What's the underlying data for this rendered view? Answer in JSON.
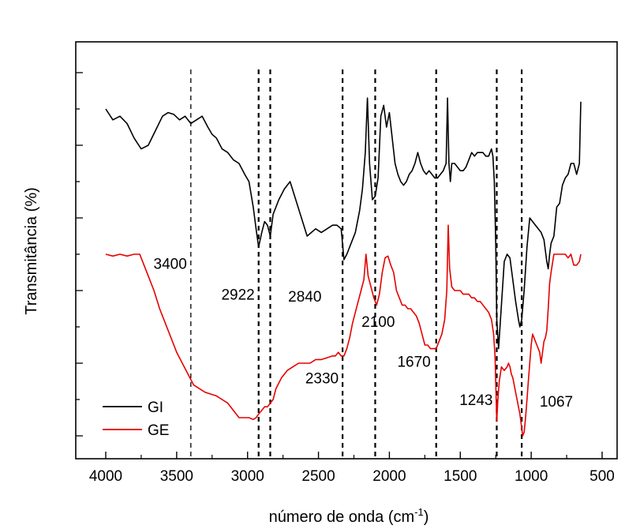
{
  "chart_data": {
    "type": "line",
    "xlabel_main": "número de onda (cm",
    "xlabel_sup": "-1",
    "xlabel_end": ")",
    "ylabel": "Transmitância (%)",
    "xlim": [
      4200,
      400
    ],
    "x_reversed": true,
    "ylim": [
      0,
      10
    ],
    "x_ticks": [
      4000,
      3500,
      3000,
      2500,
      2000,
      1500,
      1000,
      500
    ],
    "y_ticks_labeled": false,
    "legend": {
      "position": "bottom-left",
      "entries": [
        {
          "name": "GI",
          "color": "#000000"
        },
        {
          "name": "GE",
          "color": "#e60000"
        }
      ]
    },
    "reference_lines": [
      {
        "x": 3400,
        "label": "3400",
        "label_y": 4.6
      },
      {
        "x": 2922,
        "label": "2922",
        "label_y": 3.75
      },
      {
        "x": 2840,
        "label": "2840",
        "label_y": 3.7
      },
      {
        "x": 2330,
        "label": "2330",
        "label_y": 1.45
      },
      {
        "x": 2100,
        "label": "2100",
        "label_y": 3.0
      },
      {
        "x": 1670,
        "label": "1670",
        "label_y": 1.9
      },
      {
        "x": 1243,
        "label": "1243",
        "label_y": 0.85
      },
      {
        "x": 1067,
        "label": "1067",
        "label_y": 0.8
      }
    ],
    "series": [
      {
        "name": "GI",
        "color": "#000000",
        "x": [
          4000,
          3950,
          3900,
          3850,
          3800,
          3750,
          3700,
          3650,
          3600,
          3560,
          3520,
          3480,
          3440,
          3400,
          3360,
          3320,
          3280,
          3250,
          3220,
          3180,
          3140,
          3100,
          3060,
          3020,
          2990,
          2960,
          2940,
          2922,
          2900,
          2880,
          2860,
          2840,
          2820,
          2780,
          2740,
          2700,
          2660,
          2620,
          2580,
          2550,
          2520,
          2480,
          2440,
          2400,
          2370,
          2340,
          2320,
          2300,
          2270,
          2240,
          2210,
          2190,
          2170,
          2155,
          2140,
          2120,
          2100,
          2080,
          2060,
          2040,
          2020,
          2000,
          1980,
          1960,
          1940,
          1920,
          1900,
          1880,
          1860,
          1840,
          1820,
          1800,
          1780,
          1760,
          1740,
          1720,
          1700,
          1680,
          1660,
          1640,
          1620,
          1600,
          1590,
          1580,
          1570,
          1560,
          1540,
          1520,
          1500,
          1480,
          1460,
          1440,
          1420,
          1400,
          1380,
          1360,
          1340,
          1320,
          1300,
          1280,
          1270,
          1260,
          1250,
          1243,
          1230,
          1210,
          1190,
          1170,
          1150,
          1130,
          1110,
          1090,
          1080,
          1067,
          1050,
          1030,
          1010,
          990,
          970,
          950,
          930,
          910,
          890,
          880,
          870,
          860,
          840,
          820,
          800,
          780,
          760,
          740,
          720,
          700,
          680,
          660,
          650
        ],
        "y": [
          9.0,
          8.7,
          8.8,
          8.6,
          8.2,
          7.9,
          8.0,
          8.4,
          8.8,
          8.9,
          8.85,
          8.7,
          8.8,
          8.6,
          8.7,
          8.8,
          8.5,
          8.3,
          8.2,
          7.9,
          7.8,
          7.6,
          7.5,
          7.2,
          7.0,
          6.3,
          5.7,
          5.2,
          5.6,
          5.9,
          5.8,
          5.5,
          6.1,
          6.5,
          6.8,
          7.0,
          6.5,
          6.0,
          5.5,
          5.6,
          5.7,
          5.6,
          5.7,
          5.8,
          5.8,
          5.7,
          4.85,
          5.0,
          5.3,
          5.6,
          6.2,
          6.8,
          7.8,
          9.3,
          7.5,
          6.5,
          6.6,
          7.1,
          8.8,
          9.1,
          8.5,
          8.9,
          8.2,
          7.5,
          7.2,
          7.0,
          6.9,
          7.0,
          7.2,
          7.3,
          7.5,
          7.8,
          7.5,
          7.3,
          7.2,
          7.3,
          7.2,
          7.1,
          7.1,
          7.2,
          7.3,
          7.5,
          9.3,
          7.5,
          7.0,
          7.5,
          7.5,
          7.4,
          7.3,
          7.3,
          7.4,
          7.6,
          7.8,
          7.7,
          7.8,
          7.8,
          7.8,
          7.7,
          7.7,
          7.9,
          7.7,
          7.0,
          5.3,
          3.2,
          2.4,
          3.6,
          4.8,
          5.0,
          4.9,
          4.3,
          3.7,
          3.2,
          3.0,
          3.2,
          4.0,
          5.2,
          6.0,
          5.9,
          5.8,
          5.7,
          5.6,
          5.4,
          4.8,
          4.6,
          5.0,
          5.3,
          5.5,
          6.3,
          6.4,
          6.9,
          7.1,
          7.2,
          7.5,
          7.5,
          7.2,
          7.5,
          9.2
        ]
      },
      {
        "name": "GE",
        "color": "#e60000",
        "x": [
          4000,
          3950,
          3900,
          3850,
          3800,
          3760,
          3730,
          3700,
          3660,
          3620,
          3580,
          3540,
          3500,
          3460,
          3420,
          3380,
          3340,
          3300,
          3260,
          3220,
          3180,
          3140,
          3100,
          3060,
          3020,
          2990,
          2960,
          2940,
          2922,
          2900,
          2880,
          2860,
          2840,
          2820,
          2800,
          2760,
          2720,
          2680,
          2640,
          2600,
          2560,
          2520,
          2480,
          2440,
          2400,
          2380,
          2360,
          2340,
          2320,
          2300,
          2280,
          2260,
          2240,
          2220,
          2200,
          2180,
          2165,
          2150,
          2130,
          2110,
          2090,
          2070,
          2050,
          2030,
          2010,
          1990,
          1970,
          1950,
          1930,
          1910,
          1890,
          1870,
          1850,
          1830,
          1810,
          1790,
          1770,
          1750,
          1730,
          1710,
          1690,
          1670,
          1650,
          1630,
          1610,
          1595,
          1585,
          1575,
          1560,
          1540,
          1520,
          1500,
          1480,
          1460,
          1440,
          1420,
          1400,
          1380,
          1360,
          1340,
          1320,
          1300,
          1280,
          1265,
          1255,
          1243,
          1235,
          1225,
          1210,
          1190,
          1170,
          1160,
          1150,
          1140,
          1130,
          1120,
          1110,
          1100,
          1090,
          1080,
          1070,
          1060,
          1050,
          1040,
          1030,
          1020,
          1010,
          1000,
          990,
          980,
          970,
          960,
          950,
          940,
          930,
          920,
          910,
          900,
          890,
          880,
          870,
          860,
          840,
          820,
          800,
          780,
          760,
          740,
          720,
          700,
          680,
          660,
          650
        ],
        "y": [
          5.0,
          4.95,
          5.0,
          4.95,
          5.0,
          5.0,
          4.7,
          4.4,
          4.0,
          3.5,
          3.1,
          2.7,
          2.3,
          2.0,
          1.7,
          1.4,
          1.3,
          1.2,
          1.15,
          1.1,
          1.0,
          0.9,
          0.7,
          0.5,
          0.5,
          0.5,
          0.45,
          0.5,
          0.6,
          0.7,
          0.8,
          0.8,
          0.9,
          1.0,
          1.3,
          1.6,
          1.8,
          1.9,
          2.0,
          2.0,
          2.0,
          2.1,
          2.1,
          2.15,
          2.2,
          2.2,
          2.3,
          2.2,
          2.2,
          2.4,
          2.7,
          3.1,
          3.4,
          3.7,
          4.0,
          4.3,
          5.0,
          4.4,
          4.1,
          3.8,
          3.6,
          3.9,
          4.5,
          4.9,
          4.95,
          4.7,
          4.5,
          4.0,
          3.8,
          3.6,
          3.6,
          3.5,
          3.5,
          3.4,
          3.3,
          3.1,
          2.8,
          2.5,
          2.5,
          2.4,
          2.4,
          2.4,
          2.6,
          2.8,
          3.2,
          4.0,
          5.8,
          4.6,
          4.1,
          4.0,
          4.0,
          4.0,
          3.9,
          3.9,
          3.9,
          3.8,
          3.8,
          3.7,
          3.7,
          3.6,
          3.5,
          3.4,
          3.2,
          2.8,
          2.2,
          0.4,
          1.0,
          1.5,
          1.9,
          1.8,
          1.9,
          2.0,
          1.9,
          1.7,
          1.6,
          1.4,
          1.2,
          1.0,
          0.8,
          0.6,
          0.3,
          0.0,
          0.1,
          0.5,
          1.0,
          1.5,
          2.0,
          2.5,
          2.8,
          2.7,
          2.6,
          2.5,
          2.4,
          2.3,
          2.0,
          2.3,
          2.6,
          2.7,
          2.9,
          3.5,
          4.2,
          4.5,
          5.0,
          5.0,
          5.0,
          5.0,
          5.0,
          4.9,
          5.0,
          4.7,
          4.7,
          4.8,
          5.0
        ]
      }
    ]
  }
}
